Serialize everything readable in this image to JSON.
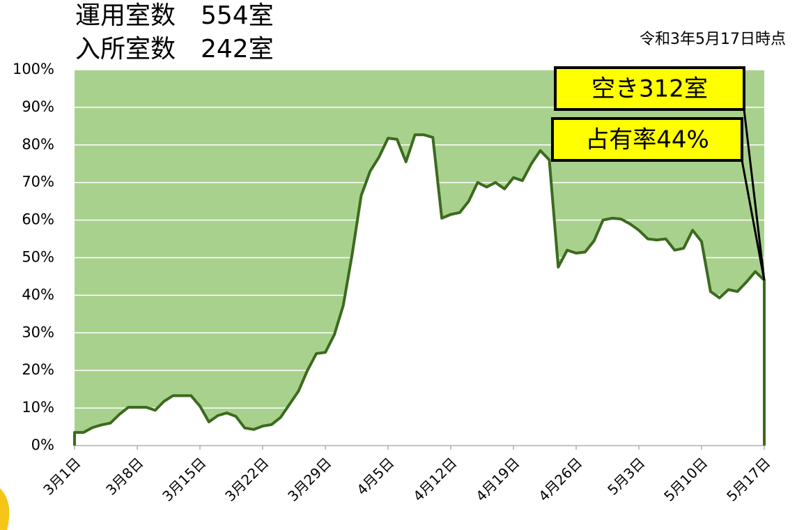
{
  "chart_data": {
    "type": "area",
    "headline": [
      "運用室数　554室",
      "入所室数　242室"
    ],
    "date_note": "令和3年5月17日時点",
    "annotations": [
      "空き312室",
      "占有率44%"
    ],
    "categories": [
      "3月1日",
      null,
      null,
      null,
      null,
      null,
      null,
      "3月8日",
      null,
      null,
      null,
      null,
      null,
      null,
      "3月15日",
      null,
      null,
      null,
      null,
      null,
      null,
      "3月22日",
      null,
      null,
      null,
      null,
      null,
      null,
      "3月29日",
      null,
      null,
      null,
      null,
      null,
      null,
      "4月5日",
      null,
      null,
      null,
      null,
      null,
      null,
      "4月12日",
      null,
      null,
      null,
      null,
      null,
      null,
      "4月19日",
      null,
      null,
      null,
      null,
      null,
      null,
      "4月26日",
      null,
      null,
      null,
      null,
      null,
      null,
      "5月3日",
      null,
      null,
      null,
      null,
      null,
      null,
      "5月10日",
      null,
      null,
      null,
      null,
      null,
      null,
      "5月17日"
    ],
    "values": [
      3.5,
      3.5,
      4.8,
      5.5,
      6,
      8.3,
      10.2,
      10.2,
      10.2,
      9.4,
      11.8,
      13.3,
      13.3,
      13.3,
      10.5,
      6.3,
      8,
      8.7,
      7.8,
      4.7,
      4.3,
      5.2,
      5.6,
      7.5,
      11,
      14.5,
      20,
      24.5,
      24.8,
      29.5,
      37.3,
      51,
      66.5,
      73,
      76.8,
      81.8,
      81.5,
      75.5,
      82.7,
      82.7,
      82,
      60.5,
      61.5,
      62,
      65,
      70,
      68.8,
      70,
      68.3,
      71.3,
      70.5,
      75,
      78.5,
      76,
      47.5,
      52,
      51.2,
      51.5,
      54.5,
      60,
      60.5,
      60.3,
      59,
      57.3,
      55,
      54.7,
      55,
      52,
      52.5,
      57.3,
      54.3,
      41,
      39.3,
      41.5,
      41,
      43.5,
      46.3,
      44
    ],
    "color": "#3c6a1e",
    "background_color": "#a9d18e",
    "ylim": [
      0,
      100
    ],
    "yticks": [
      {
        "value": 0,
        "label": "0%"
      },
      {
        "value": 10,
        "label": "10%"
      },
      {
        "value": 20,
        "label": "20%"
      },
      {
        "value": 30,
        "label": "30%"
      },
      {
        "value": 40,
        "label": "40%"
      },
      {
        "value": 50,
        "label": "50%"
      },
      {
        "value": 60,
        "label": "60%"
      },
      {
        "value": 70,
        "label": "70%"
      },
      {
        "value": 80,
        "label": "80%"
      },
      {
        "value": 90,
        "label": "90%"
      },
      {
        "value": 100,
        "label": "100%"
      }
    ],
    "grid": true
  }
}
